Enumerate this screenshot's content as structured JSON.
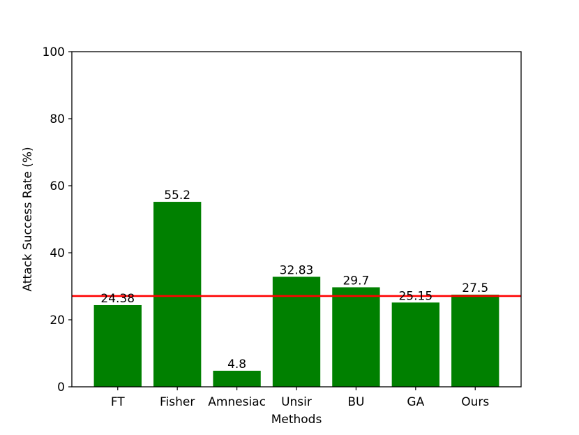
{
  "chart_data": {
    "type": "bar",
    "categories": [
      "FT",
      "Fisher",
      "Amnesiac",
      "Unsir",
      "BU",
      "GA",
      "Ours"
    ],
    "values": [
      24.38,
      55.2,
      4.8,
      32.83,
      29.7,
      25.15,
      27.5
    ],
    "data_labels": [
      "24.38",
      "55.2",
      "4.8",
      "32.83",
      "29.7",
      "25.15",
      "27.5"
    ],
    "title": "",
    "xlabel": "Methods",
    "ylabel": "Attack Success Rate (%)",
    "ylim": [
      0,
      100
    ],
    "yticks": [
      0,
      20,
      40,
      60,
      80,
      100
    ],
    "grid": false,
    "bar_color": "#008000",
    "reference_line": {
      "value": 27.1,
      "color": "#ff0000"
    }
  }
}
